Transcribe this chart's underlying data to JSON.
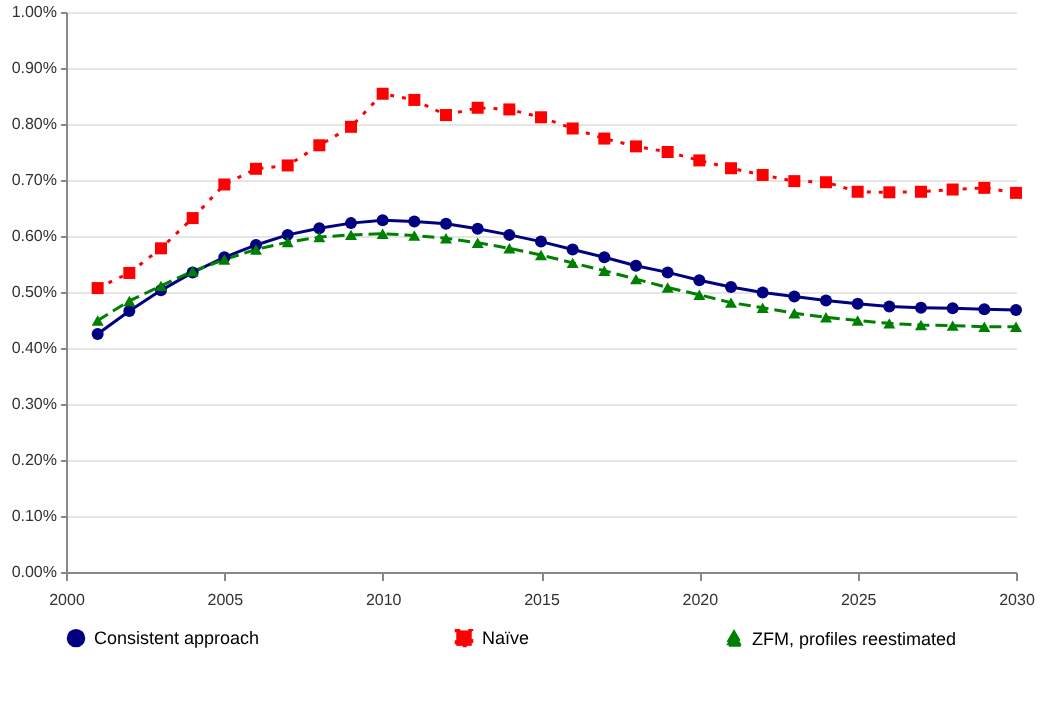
{
  "chart_data": {
    "type": "line",
    "x": [
      2001,
      2002,
      2003,
      2004,
      2005,
      2006,
      2007,
      2008,
      2009,
      2010,
      2011,
      2012,
      2013,
      2014,
      2015,
      2016,
      2017,
      2018,
      2019,
      2020,
      2021,
      2022,
      2023,
      2024,
      2025,
      2026,
      2027,
      2028,
      2029,
      2030
    ],
    "series": [
      {
        "name": "Consistent approach",
        "color": "#000080",
        "marker": "circle",
        "line_style": "solid",
        "values": [
          0.425,
          0.466,
          0.503,
          0.535,
          0.562,
          0.584,
          0.602,
          0.614,
          0.623,
          0.628,
          0.626,
          0.622,
          0.613,
          0.602,
          0.59,
          0.576,
          0.562,
          0.547,
          0.535,
          0.521,
          0.509,
          0.499,
          0.492,
          0.485,
          0.479,
          0.474,
          0.472,
          0.471,
          0.469,
          0.468
        ]
      },
      {
        "name": "Naïve",
        "color": "#ff0000",
        "marker": "square",
        "line_style": "dotted",
        "values": [
          0.507,
          0.534,
          0.578,
          0.632,
          0.692,
          0.72,
          0.726,
          0.762,
          0.795,
          0.854,
          0.843,
          0.816,
          0.829,
          0.826,
          0.812,
          0.792,
          0.774,
          0.76,
          0.75,
          0.735,
          0.721,
          0.709,
          0.698,
          0.696,
          0.679,
          0.678,
          0.679,
          0.683,
          0.686,
          0.677
        ]
      },
      {
        "name": "ZFM, profiles reestimated",
        "color": "#008000",
        "marker": "triangle",
        "line_style": "dashed",
        "values": [
          0.449,
          0.484,
          0.511,
          0.537,
          0.558,
          0.576,
          0.589,
          0.598,
          0.602,
          0.604,
          0.601,
          0.596,
          0.588,
          0.578,
          0.566,
          0.552,
          0.538,
          0.523,
          0.508,
          0.495,
          0.481,
          0.472,
          0.462,
          0.455,
          0.449,
          0.444,
          0.441,
          0.44,
          0.438,
          0.438
        ]
      }
    ],
    "xlim": [
      2000,
      2030
    ],
    "xticks": [
      2000,
      2005,
      2010,
      2015,
      2020,
      2025,
      2030
    ],
    "ylim": [
      0,
      1
    ],
    "yticks": [
      {
        "value": 0,
        "label": "0.00%"
      },
      {
        "value": 0.1,
        "label": "0.10%"
      },
      {
        "value": 0.2,
        "label": "0.20%"
      },
      {
        "value": 0.3,
        "label": "0.30%"
      },
      {
        "value": 0.4,
        "label": "0.40%"
      },
      {
        "value": 0.5,
        "label": "0.50%"
      },
      {
        "value": 0.6,
        "label": "0.60%"
      },
      {
        "value": 0.7,
        "label": "0.70%"
      },
      {
        "value": 0.8,
        "label": "0.80%"
      },
      {
        "value": 0.9,
        "label": "0.90%"
      },
      {
        "value": 1,
        "label": "1.00%"
      }
    ],
    "grid": "y",
    "legend": "bottom"
  }
}
